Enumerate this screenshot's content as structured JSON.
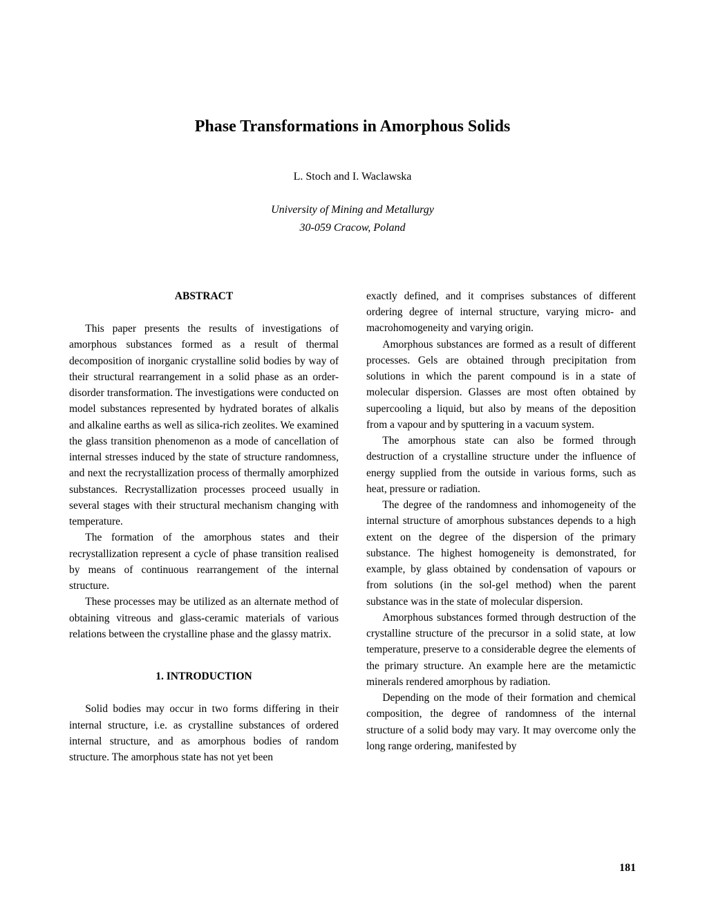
{
  "title": "Phase Transformations in Amorphous Solids",
  "authors": "L. Stoch and I. Waclawska",
  "affiliation_line1": "University of Mining and Metallurgy",
  "affiliation_line2": "30-059 Cracow, Poland",
  "abstract_heading": "ABSTRACT",
  "intro_heading": "1. INTRODUCTION",
  "abstract_paragraphs": [
    "This paper presents the results of investigations of amorphous substances formed as a result of thermal decomposition of inorganic crystalline solid bodies by way of their structural rearrangement in a solid phase as an order-disorder transformation. The investigations were conducted on model substances represented by hydrated borates of alkalis and alkaline earths as well as silica-rich zeolites. We examined the glass transition phenomenon as a mode of cancellation of internal stresses induced by the state of structure randomness, and next the recrystallization process of thermally amorphized substances. Recrystallization processes proceed usually in several stages with their structural mechanism changing with temperature.",
    "The formation of the amorphous states and their recrystallization represent a cycle of phase transition realised by means of continuous rearrangement of the internal structure.",
    "These processes may be utilized as an alternate method of obtaining vitreous and glass-ceramic materials of various relations between the crystalline phase and the glassy matrix."
  ],
  "intro_paragraphs_col1": [
    "Solid bodies may occur in two forms differing in their internal structure, i.e. as crystalline substances of ordered internal structure, and as amorphous bodies of random structure. The amorphous state has not yet been"
  ],
  "intro_paragraphs_col2": [
    "exactly defined, and it comprises substances of different ordering degree of internal structure, varying micro- and macrohomogeneity and varying origin.",
    "Amorphous substances are formed as a result of different processes. Gels are obtained through precipitation from solutions in which the parent compound is in a state of molecular dispersion. Glasses are most often obtained by supercooling a liquid, but also by means of the deposition from a vapour and by sputtering in a vacuum system.",
    "The amorphous state can also be formed through destruction of a crystalline structure under the influence of energy supplied from the outside in various forms, such as heat, pressure or radiation.",
    "The degree of the randomness and inhomogeneity of the internal structure of amorphous substances depends to a high extent on the degree of the dispersion of the primary substance. The highest homogeneity is demonstrated, for example, by glass obtained by condensation of vapours or from solutions (in the sol-gel method) when the parent substance was in the state of molecular dispersion.",
    "Amorphous substances formed through destruction of the crystalline structure of the precursor in a solid state, at low temperature, preserve to a considerable degree the elements of the primary structure. An example here are the metamictic minerals rendered amorphous by radiation.",
    "Depending on the mode of their formation and chemical composition, the degree of randomness of the internal structure of a solid body may vary. It may overcome only the long range ordering, manifested by"
  ],
  "page_number": "181",
  "colors": {
    "text": "#000000",
    "background": "#ffffff"
  },
  "typography": {
    "title_fontsize": 24,
    "body_fontsize": 15.5,
    "authors_fontsize": 16,
    "font_family": "Times New Roman"
  }
}
